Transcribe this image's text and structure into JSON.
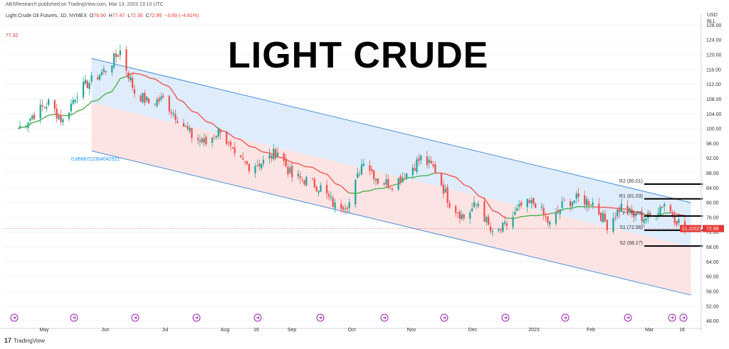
{
  "header": {
    "publisher": "ABSResearch published on TradingView.com, Mar 13, 2023 13:10 UTC",
    "instrument": "Light Crude Oil Futures, 1D, NYMEX",
    "o_label": "O",
    "o_value": "76.60",
    "h_label": "H",
    "h_value": "77.47",
    "l_label": "L",
    "l_value": "72.30",
    "c_label": "C",
    "c_value": "72.99",
    "change": "−3.69 (−4.81%)",
    "ma_value": "77.32"
  },
  "title": "LIGHT CRUDE",
  "currency": [
    "USD",
    "BLL"
  ],
  "fib_label": "0.866872236404252​1",
  "footer": {
    "brand": "TradingView"
  },
  "colors": {
    "up": "#26a69a",
    "down": "#ef5350",
    "ma_red": "#ef5350",
    "ma_green": "#4caf50",
    "channel_blue_fill": "#dbeafb",
    "channel_red_fill": "#fde1e1",
    "channel_line": "#4a90d9",
    "price_line": "#e53935"
  },
  "chart_data": {
    "type": "candlestick",
    "title": "LIGHT CRUDE",
    "xlabel": "",
    "ylabel": "",
    "ylim": [
      46,
      130
    ],
    "y_ticks": [
      128,
      124,
      120,
      116,
      112,
      108,
      104,
      100,
      96,
      92,
      88,
      84,
      80,
      76,
      72,
      68,
      64,
      60,
      56,
      52,
      48
    ],
    "x_tick_labels": [
      "May",
      "Jun",
      "Jul",
      "Aug",
      "16",
      "Sep",
      "Oct",
      "Nov",
      "Dec",
      "2023",
      "Feb",
      "Mar",
      "16"
    ],
    "price_points": [
      [
        "2022-04-21",
        100
      ],
      [
        "2022-04-29",
        104
      ],
      [
        "2022-05-06",
        107
      ],
      [
        "2022-05-13",
        102
      ],
      [
        "2022-05-20",
        110
      ],
      [
        "2022-05-27",
        113
      ],
      [
        "2022-06-03",
        116
      ],
      [
        "2022-06-10",
        121
      ],
      [
        "2022-06-17",
        110
      ],
      [
        "2022-06-24",
        107
      ],
      [
        "2022-07-01",
        108
      ],
      [
        "2022-07-08",
        103
      ],
      [
        "2022-07-15",
        98
      ],
      [
        "2022-07-22",
        96
      ],
      [
        "2022-07-29",
        100
      ],
      [
        "2022-08-05",
        92
      ],
      [
        "2022-08-12",
        90
      ],
      [
        "2022-08-19",
        91
      ],
      [
        "2022-08-26",
        94
      ],
      [
        "2022-09-02",
        87
      ],
      [
        "2022-09-09",
        86
      ],
      [
        "2022-09-16",
        84
      ],
      [
        "2022-09-23",
        79
      ],
      [
        "2022-09-30",
        80
      ],
      [
        "2022-10-07",
        92
      ],
      [
        "2022-10-14",
        86
      ],
      [
        "2022-10-21",
        85
      ],
      [
        "2022-10-28",
        88
      ],
      [
        "2022-11-04",
        92
      ],
      [
        "2022-11-11",
        89
      ],
      [
        "2022-11-18",
        80
      ],
      [
        "2022-11-25",
        76
      ],
      [
        "2022-12-02",
        80
      ],
      [
        "2022-12-09",
        71
      ],
      [
        "2022-12-16",
        74
      ],
      [
        "2022-12-23",
        79
      ],
      [
        "2022-12-30",
        80
      ],
      [
        "2023-01-06",
        74
      ],
      [
        "2023-01-13",
        80
      ],
      [
        "2023-01-20",
        81
      ],
      [
        "2023-01-27",
        80
      ],
      [
        "2023-02-03",
        74
      ],
      [
        "2023-02-10",
        79
      ],
      [
        "2023-02-17",
        76
      ],
      [
        "2023-02-24",
        76
      ],
      [
        "2023-03-03",
        80
      ],
      [
        "2023-03-08",
        76
      ],
      [
        "2023-03-13",
        73
      ]
    ],
    "channel": {
      "upper": {
        "start": [
          "2022-05-27",
          119
        ],
        "end": [
          "2023-03-16",
          80
        ]
      },
      "mid": {
        "start": [
          "2022-05-27",
          107
        ],
        "end": [
          "2023-03-16",
          68
        ]
      },
      "lower": {
        "start": [
          "2022-05-27",
          94
        ],
        "end": [
          "2023-03-16",
          55
        ]
      }
    },
    "pivots": [
      {
        "label": "R2 (85.01)",
        "value": 85.01
      },
      {
        "label": "R1 (81.03)",
        "value": 81.03
      },
      {
        "label": "P (76.39)",
        "value": 76.39
      },
      {
        "label": "S1 (72.56)",
        "value": 72.56
      },
      {
        "label": "S2 (68.27)",
        "value": 68.27
      }
    ],
    "last_price": {
      "label": "CLJ2023",
      "value": 72.99,
      "text": "72.99"
    }
  }
}
